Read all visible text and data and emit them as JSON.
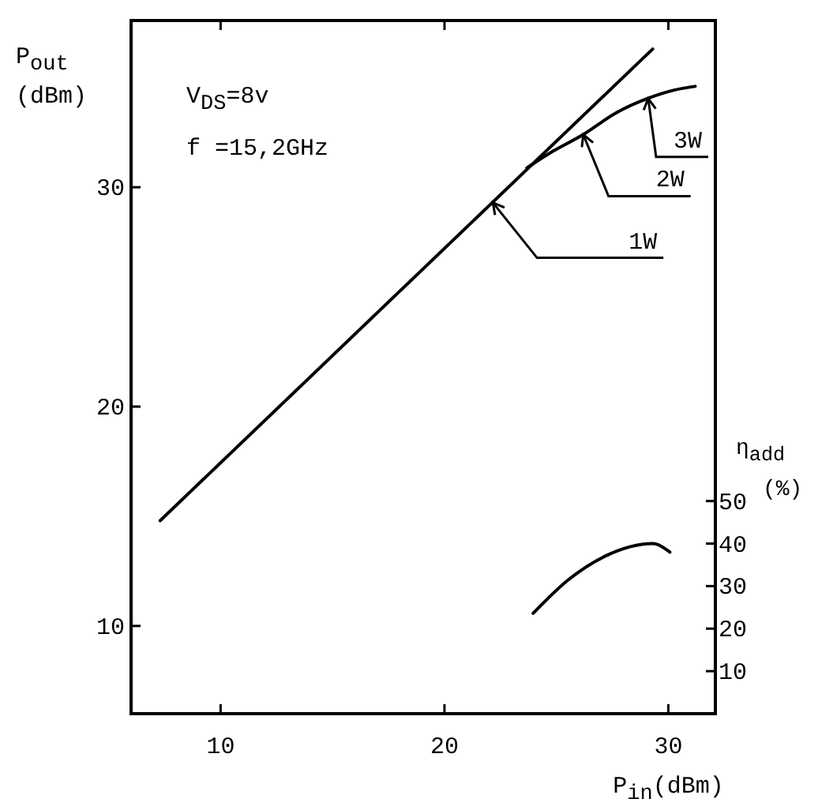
{
  "chart_data": {
    "type": "line",
    "xlabel": "P$_{in}$(dBm)",
    "ylabel": "P$_{out}$\n(dBm)",
    "y2label": "η$_{add}$\n(%)",
    "xlim": [
      6,
      32.1
    ],
    "xticks": [
      10,
      20,
      30
    ],
    "ylim": [
      6,
      37.6
    ],
    "yticks": [
      10,
      20,
      30
    ],
    "y2lim": [
      0,
      163
    ],
    "y2ticks": [
      10,
      20,
      30,
      40,
      50
    ],
    "grid": false,
    "marker": "none",
    "line_style": "solid",
    "series": [
      {
        "color": "#000000",
        "x": [
          7.3,
          29.3
        ],
        "values": [
          14.8,
          36.3
        ]
      },
      {
        "color": "#000000",
        "x": [
          23.68,
          24.86,
          26.15,
          27.68,
          29.08,
          30.26,
          31.2
        ],
        "values": [
          30.88,
          31.65,
          32.37,
          33.4,
          34.05,
          34.43,
          34.6
        ]
      },
      {
        "color": "#000000",
        "axis": "y2",
        "x": [
          23.96,
          25.56,
          27.2,
          29.3,
          30.07
        ],
        "values": [
          23.6,
          31.6,
          37.1,
          40,
          38
        ]
      }
    ],
    "annotations": [
      "V$_{DS}$=8v",
      "f  =15,2GHz",
      {
        "text": "1W",
        "x": 22.16,
        "y": 29.3
      },
      {
        "text": "2W",
        "x": 26.2,
        "y": 32.4
      },
      {
        "text": "3W",
        "x": 29.1,
        "y": 34.05
      }
    ]
  }
}
